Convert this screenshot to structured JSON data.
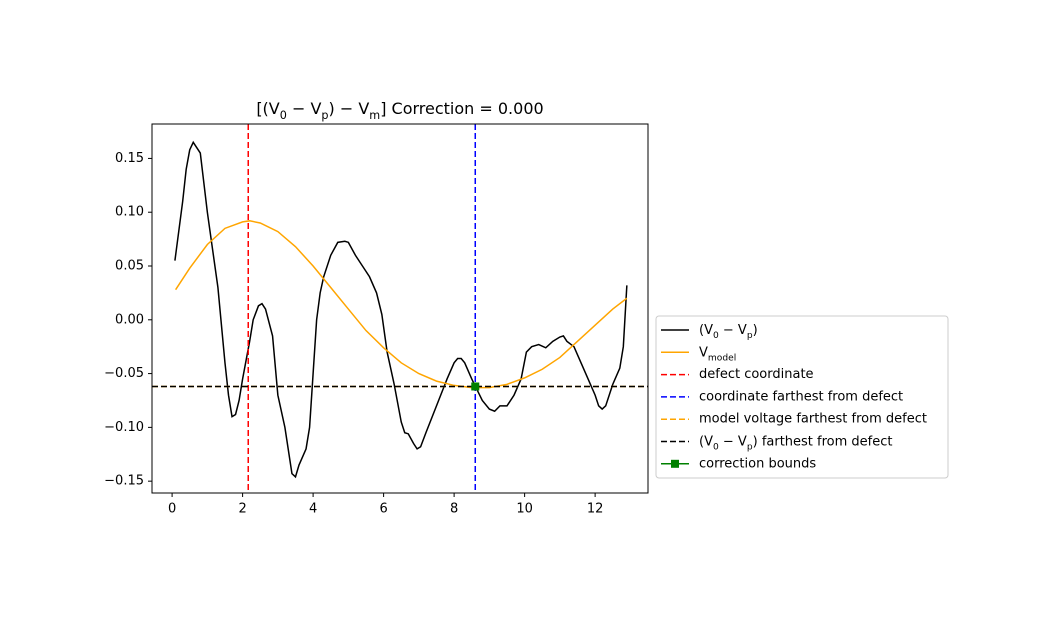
{
  "chart_data": {
    "type": "line",
    "title": "[(V_0 − V_p) − V_m] Correction = 0.000",
    "xlim": [
      -0.57,
      13.5
    ],
    "ylim": [
      -0.161,
      0.182
    ],
    "xticks": [
      0,
      2,
      4,
      6,
      8,
      10,
      12
    ],
    "yticks": [
      {
        "value": 0.15,
        "label": "0.15"
      },
      {
        "value": 0.1,
        "label": "0.10"
      },
      {
        "value": 0.05,
        "label": "0.05"
      },
      {
        "value": 0,
        "label": "0.00"
      },
      {
        "value": -0.05,
        "label": "−0.05"
      },
      {
        "value": -0.1,
        "label": "−0.10"
      },
      {
        "value": -0.15,
        "label": "−0.15"
      }
    ],
    "legend": "right",
    "series": [
      {
        "name": "(V_0 − V_p)",
        "color": "#000000",
        "linestyle": "solid",
        "x": [
          0.08,
          0.3,
          0.4,
          0.5,
          0.6,
          0.8,
          1.0,
          1.3,
          1.5,
          1.6,
          1.7,
          1.8,
          1.9,
          2.0,
          2.2,
          2.3,
          2.45,
          2.55,
          2.65,
          2.85,
          3.0,
          3.2,
          3.4,
          3.5,
          3.6,
          3.8,
          3.9,
          4.0,
          4.1,
          4.2,
          4.3,
          4.5,
          4.7,
          4.9,
          5.0,
          5.2,
          5.4,
          5.6,
          5.8,
          5.95,
          6.1,
          6.3,
          6.5,
          6.6,
          6.7,
          6.85,
          6.95,
          7.05,
          7.2,
          7.5,
          7.8,
          8.0,
          8.1,
          8.2,
          8.3,
          8.5,
          8.65,
          8.8,
          9.0,
          9.15,
          9.3,
          9.5,
          9.7,
          9.9,
          10.05,
          10.2,
          10.4,
          10.6,
          10.8,
          11.0,
          11.1,
          11.2,
          11.4,
          11.6,
          11.8,
          12.0,
          12.1,
          12.2,
          12.3,
          12.5,
          12.7,
          12.8,
          12.9
        ],
        "values": [
          0.055,
          0.11,
          0.14,
          0.158,
          0.165,
          0.155,
          0.1,
          0.03,
          -0.04,
          -0.07,
          -0.09,
          -0.088,
          -0.075,
          -0.055,
          -0.02,
          0.0,
          0.013,
          0.015,
          0.01,
          -0.015,
          -0.07,
          -0.1,
          -0.143,
          -0.146,
          -0.135,
          -0.12,
          -0.1,
          -0.05,
          0.0,
          0.025,
          0.04,
          0.06,
          0.072,
          0.073,
          0.072,
          0.06,
          0.05,
          0.04,
          0.025,
          0.005,
          -0.03,
          -0.06,
          -0.095,
          -0.105,
          -0.106,
          -0.115,
          -0.12,
          -0.118,
          -0.105,
          -0.08,
          -0.055,
          -0.04,
          -0.036,
          -0.036,
          -0.04,
          -0.055,
          -0.065,
          -0.075,
          -0.083,
          -0.085,
          -0.08,
          -0.08,
          -0.07,
          -0.055,
          -0.03,
          -0.025,
          -0.023,
          -0.026,
          -0.02,
          -0.016,
          -0.015,
          -0.02,
          -0.025,
          -0.04,
          -0.055,
          -0.07,
          -0.08,
          -0.083,
          -0.08,
          -0.06,
          -0.045,
          -0.025,
          0.032
        ]
      },
      {
        "name": "V_{model}",
        "color": "#ffa500",
        "linestyle": "solid",
        "x": [
          0.1,
          0.5,
          1.0,
          1.5,
          2.0,
          2.2,
          2.5,
          3.0,
          3.5,
          4.0,
          4.5,
          5.0,
          5.5,
          6.0,
          6.5,
          7.0,
          7.5,
          8.0,
          8.5,
          9.0,
          9.5,
          10.0,
          10.5,
          11.0,
          11.5,
          12.0,
          12.5,
          12.9
        ],
        "values": [
          0.028,
          0.048,
          0.07,
          0.085,
          0.091,
          0.092,
          0.09,
          0.082,
          0.068,
          0.05,
          0.03,
          0.01,
          -0.01,
          -0.026,
          -0.04,
          -0.05,
          -0.057,
          -0.061,
          -0.063,
          -0.063,
          -0.06,
          -0.054,
          -0.046,
          -0.035,
          -0.02,
          -0.005,
          0.01,
          0.02
        ]
      },
      {
        "name": "defect coordinate",
        "color": "#ff0000",
        "linestyle": "dashed",
        "xvalue": 2.16
      },
      {
        "name": "coordinate farthest from defect",
        "color": "#0000ff",
        "linestyle": "dashed",
        "xvalue": 8.6
      },
      {
        "name": "model voltage farthest from defect",
        "color": "#ffa500",
        "linestyle": "dashed",
        "yvalue": -0.062
      },
      {
        "name": "(V_0 − V_p) farthest from defect",
        "color": "#000000",
        "linestyle": "dashed",
        "yvalue": -0.062
      },
      {
        "name": "correction bounds",
        "color": "#008000",
        "linestyle": "solid",
        "marker": "square",
        "x": [
          8.6
        ],
        "values": [
          -0.062
        ]
      }
    ]
  }
}
